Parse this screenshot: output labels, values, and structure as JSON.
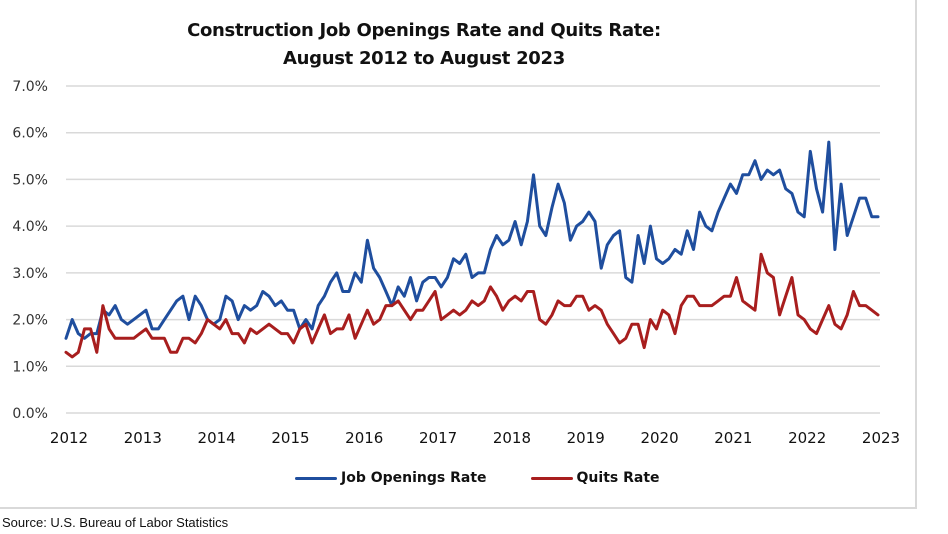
{
  "source": "Source: U.S. Bureau of Labor Statistics",
  "colors": {
    "job_openings": "#1f4e9e",
    "quits": "#a81e1e",
    "grid": "#d9d9d9"
  },
  "chart_data": {
    "type": "line",
    "title": "Construction Job Openings Rate and Quits Rate:",
    "subtitle": "August 2012 to August 2023",
    "xlabel": "",
    "ylabel": "",
    "x_start": "August 2012",
    "x_end": "August 2023",
    "x_unit": "month",
    "ylim": [
      0,
      7
    ],
    "yticks": [
      0,
      1,
      2,
      3,
      4,
      5,
      6,
      7
    ],
    "ytick_labels": [
      "0.0%",
      "1.0%",
      "2.0%",
      "3.0%",
      "4.0%",
      "5.0%",
      "6.0%",
      "7.0%"
    ],
    "xtick_labels": [
      "2012",
      "2013",
      "2014",
      "2015",
      "2016",
      "2017",
      "2018",
      "2019",
      "2020",
      "2021",
      "2022",
      "2023"
    ],
    "xtick_interval_months": 12,
    "grid": true,
    "legend_position": "bottom",
    "series": [
      {
        "name": "Job Openings Rate",
        "color": "#1f4e9e",
        "values": [
          1.6,
          2.0,
          1.7,
          1.6,
          1.7,
          1.7,
          2.2,
          2.1,
          2.3,
          2.0,
          1.9,
          2.0,
          2.1,
          2.2,
          1.8,
          1.8,
          2.0,
          2.2,
          2.4,
          2.5,
          2.0,
          2.5,
          2.3,
          2.0,
          1.9,
          2.0,
          2.5,
          2.4,
          2.0,
          2.3,
          2.2,
          2.3,
          2.6,
          2.5,
          2.3,
          2.4,
          2.2,
          2.2,
          1.8,
          2.0,
          1.8,
          2.3,
          2.5,
          2.8,
          3.0,
          2.6,
          2.6,
          3.0,
          2.8,
          3.7,
          3.1,
          2.9,
          2.6,
          2.3,
          2.7,
          2.5,
          2.9,
          2.4,
          2.8,
          2.9,
          2.9,
          2.7,
          2.9,
          3.3,
          3.2,
          3.4,
          2.9,
          3.0,
          3.0,
          3.5,
          3.8,
          3.6,
          3.7,
          4.1,
          3.6,
          4.1,
          5.1,
          4.0,
          3.8,
          4.4,
          4.9,
          4.5,
          3.7,
          4.0,
          4.1,
          4.3,
          4.1,
          3.1,
          3.6,
          3.8,
          3.9,
          2.9,
          2.8,
          3.8,
          3.2,
          4.0,
          3.3,
          3.2,
          3.3,
          3.5,
          3.4,
          3.9,
          3.5,
          4.3,
          4.0,
          3.9,
          4.3,
          4.6,
          4.9,
          4.7,
          5.1,
          5.1,
          5.4,
          5.0,
          5.2,
          5.1,
          5.2,
          4.8,
          4.7,
          4.3,
          4.2,
          5.6,
          4.8,
          4.3,
          5.8,
          3.5,
          4.9,
          3.8,
          4.2,
          4.6,
          4.6,
          4.2,
          4.2
        ]
      },
      {
        "name": "Quits Rate",
        "color": "#a81e1e",
        "values": [
          1.3,
          1.2,
          1.3,
          1.8,
          1.8,
          1.3,
          2.3,
          1.8,
          1.6,
          1.6,
          1.6,
          1.6,
          1.7,
          1.8,
          1.6,
          1.6,
          1.6,
          1.3,
          1.3,
          1.6,
          1.6,
          1.5,
          1.7,
          2.0,
          1.9,
          1.8,
          2.0,
          1.7,
          1.7,
          1.5,
          1.8,
          1.7,
          1.8,
          1.9,
          1.8,
          1.7,
          1.7,
          1.5,
          1.8,
          1.9,
          1.5,
          1.8,
          2.1,
          1.7,
          1.8,
          1.8,
          2.1,
          1.6,
          1.9,
          2.2,
          1.9,
          2.0,
          2.3,
          2.3,
          2.4,
          2.2,
          2.0,
          2.2,
          2.2,
          2.4,
          2.6,
          2.0,
          2.1,
          2.2,
          2.1,
          2.2,
          2.4,
          2.3,
          2.4,
          2.7,
          2.5,
          2.2,
          2.4,
          2.5,
          2.4,
          2.6,
          2.6,
          2.0,
          1.9,
          2.1,
          2.4,
          2.3,
          2.3,
          2.5,
          2.5,
          2.2,
          2.3,
          2.2,
          1.9,
          1.7,
          1.5,
          1.6,
          1.9,
          1.9,
          1.4,
          2.0,
          1.8,
          2.2,
          2.1,
          1.7,
          2.3,
          2.5,
          2.5,
          2.3,
          2.3,
          2.3,
          2.4,
          2.5,
          2.5,
          2.9,
          2.4,
          2.3,
          2.2,
          3.4,
          3.0,
          2.9,
          2.1,
          2.5,
          2.9,
          2.1,
          2.0,
          1.8,
          1.7,
          2.0,
          2.3,
          1.9,
          1.8,
          2.1,
          2.6,
          2.3,
          2.3,
          2.2,
          2.1
        ]
      }
    ]
  }
}
